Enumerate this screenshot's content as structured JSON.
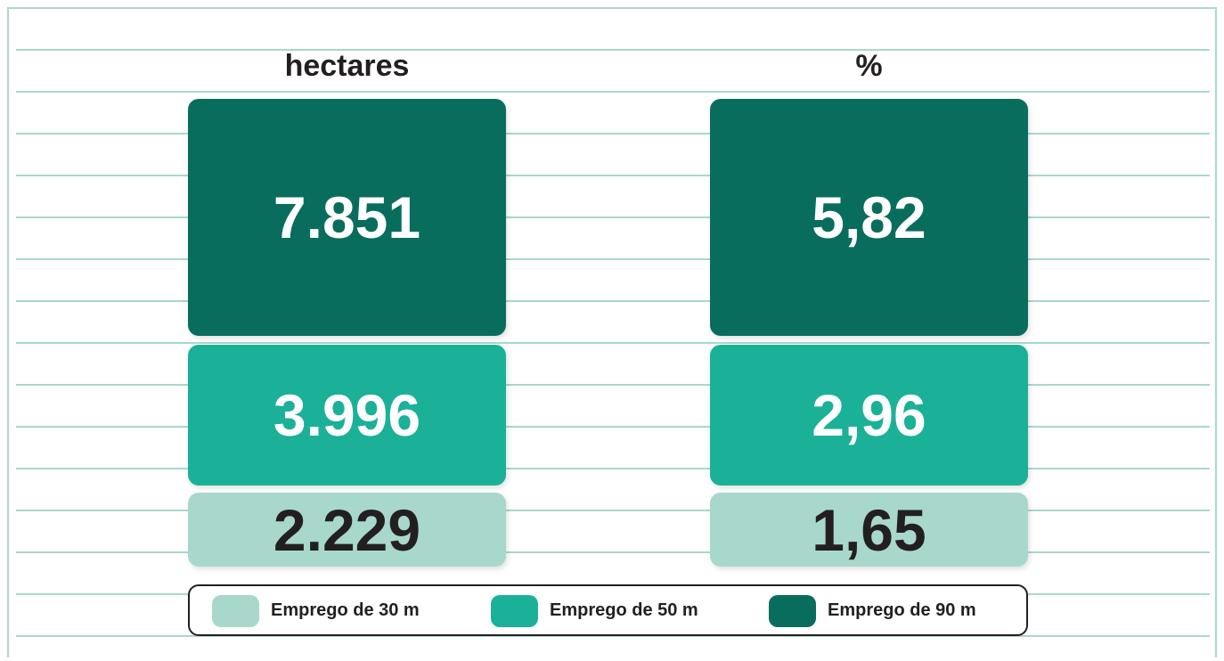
{
  "columns": [
    {
      "title": "hectares",
      "values": [
        "2.229",
        "3.996",
        "7.851"
      ]
    },
    {
      "title": "%",
      "values": [
        "1,65",
        "2,96",
        "5,82"
      ]
    }
  ],
  "legend": [
    {
      "label": "Emprego de 30 m",
      "color": "#a8d8cc",
      "text_color": "#231f20"
    },
    {
      "label": "Emprego de 50 m",
      "color": "#1ab198",
      "text_color": "#ffffff"
    },
    {
      "label": "Emprego de 90 m",
      "color": "#086d5c",
      "text_color": "#ffffff"
    }
  ]
}
